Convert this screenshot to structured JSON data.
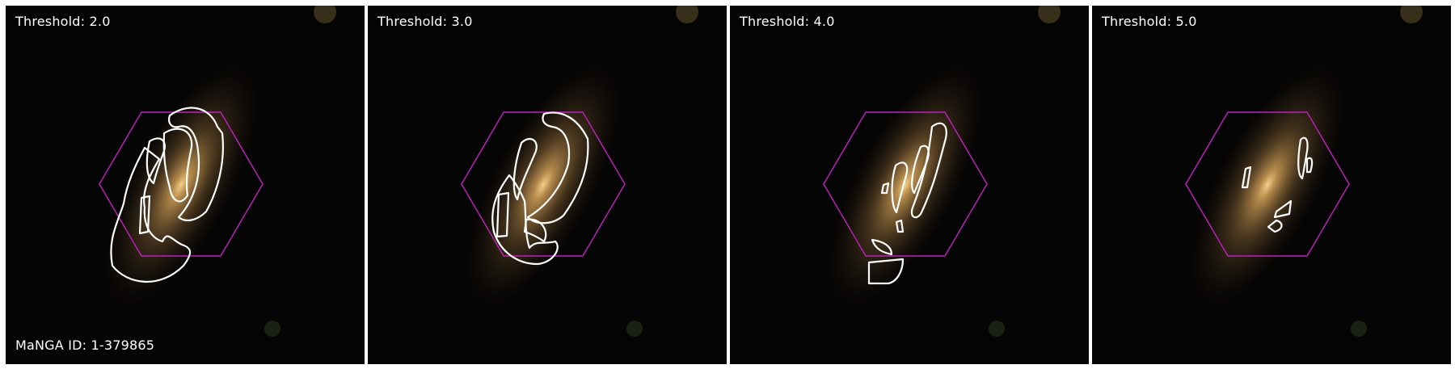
{
  "colors": {
    "background": "#000000",
    "galaxy_core": "#f2c878",
    "galaxy_halo": "#8a6a3a",
    "hexagon": "#c020c0",
    "contour": "#ffffff"
  },
  "manga_id_label": "MaNGA ID: 1-379865",
  "panels": [
    {
      "threshold_label": "Threshold: 2.0"
    },
    {
      "threshold_label": "Threshold: 3.0"
    },
    {
      "threshold_label": "Threshold: 4.0"
    },
    {
      "threshold_label": "Threshold: 5.0"
    }
  ]
}
